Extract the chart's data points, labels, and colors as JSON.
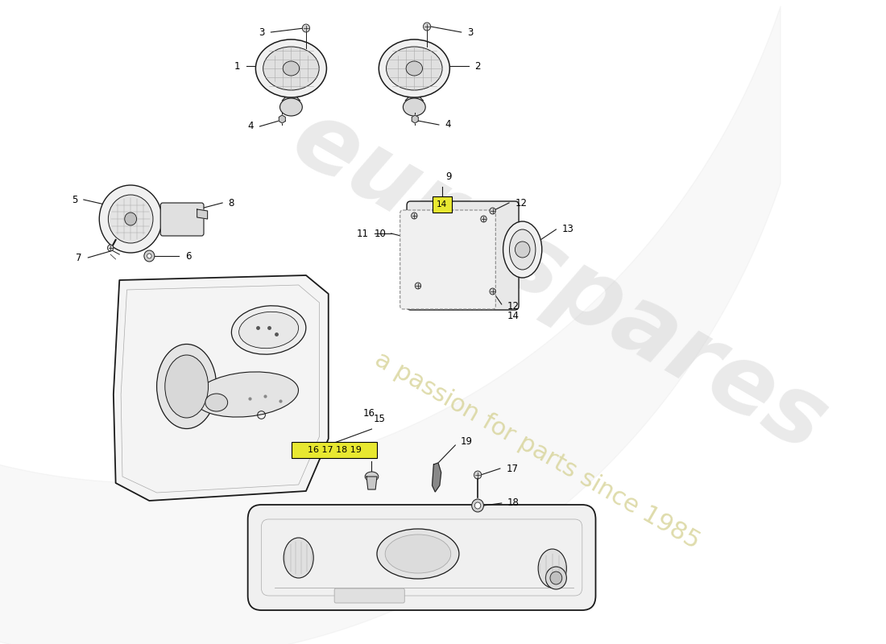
{
  "background_color": "#ffffff",
  "line_color": "#1a1a1a",
  "gray_light": "#e8e8e8",
  "gray_mid": "#cccccc",
  "gray_dark": "#999999",
  "watermark_color1": "#d0d0d0",
  "watermark_color2": "#d4d090",
  "label_fontsize": 8.5,
  "lw_main": 1.0,
  "lw_thin": 0.6,
  "watermark_text1": "eurospares",
  "watermark_text2": "a passion for parts since 1985"
}
